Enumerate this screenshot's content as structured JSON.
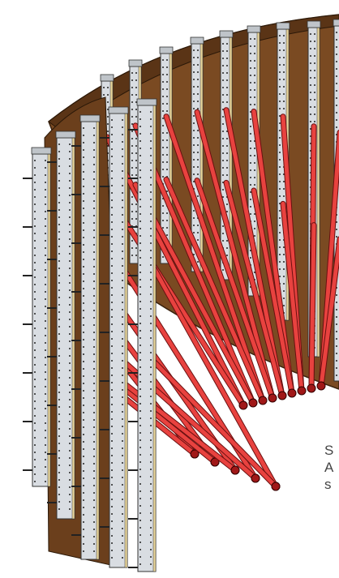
{
  "caption": {
    "lines": [
      "S",
      "A",
      "s"
    ]
  }
}
